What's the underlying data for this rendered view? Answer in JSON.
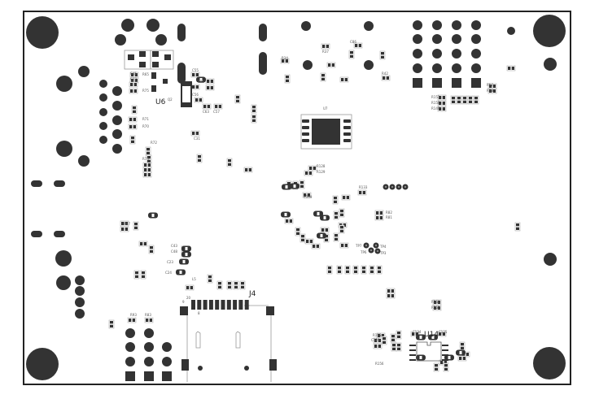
{
  "board": {
    "colors": {
      "copper": "#333333",
      "outline": "#222222",
      "silk": "#999999",
      "background": "#ffffff"
    }
  },
  "designators": {
    "u6": "U6",
    "u7": "U7",
    "j4": "J4",
    "u14": "U14",
    "tp3": "TP3",
    "tp4": "TP4",
    "tp6": "TP6",
    "tp7": "TP7",
    "r34": "R34",
    "r37": "R37",
    "r42": "R42",
    "r57": "R57",
    "r58": "R58",
    "r65": "R65",
    "r67": "R67",
    "r70": "R70",
    "r71": "R71",
    "r72": "R72",
    "r73": "R73",
    "r75": "R75",
    "r128": "R128",
    "r129": "R129",
    "r82": "R82",
    "r81": "R81",
    "r133": "R133",
    "r149": "R149",
    "r150": "R150",
    "r151": "R151",
    "r160": "R160",
    "r161": "R161",
    "r93": "R93",
    "r83": "R83",
    "r155": "R155",
    "r156": "R156",
    "c45": "C45",
    "c27": "C27",
    "c43": "C43",
    "c48": "C48",
    "c23": "C23",
    "c24": "C24",
    "c31": "C31",
    "c55": "C55",
    "c56": "C56",
    "c57": "C57",
    "c63": "C63",
    "c85": "C85",
    "c86": "C86",
    "c109": "C109",
    "c125": "C125",
    "c134": "C134",
    "c129": "C129",
    "l5": "L5",
    "q2": "Q2",
    "pin9": "9",
    "pin1": "1",
    "pin20": "20",
    "pin8": "8"
  }
}
